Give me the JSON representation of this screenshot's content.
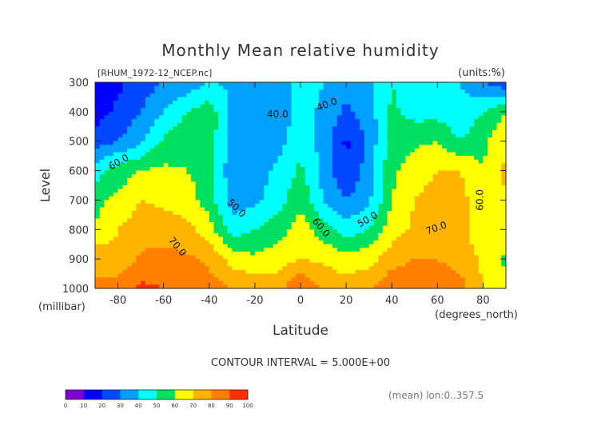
{
  "chart_data": {
    "type": "heatmap",
    "title": "Monthly Mean relative humidity",
    "file_label": "[RHUM_1972-12_NCEP.nc]",
    "units_label": "(units:%)",
    "ylabel": "Level",
    "ylabel_unit": "(millibar)",
    "xlabel": "Latitude",
    "xlabel_unit": "(degrees_north)",
    "x_ticks": [
      -80,
      -60,
      -40,
      -20,
      0,
      20,
      40,
      60,
      80
    ],
    "y_ticks": [
      300,
      400,
      500,
      600,
      700,
      800,
      900,
      1000
    ],
    "xlim": [
      -90,
      90
    ],
    "ylim": [
      1000,
      300
    ],
    "contour_interval_text": "CONTOUR INTERVAL = 5.000E+00",
    "footer_text": "(mean) lon:0..357.5",
    "contour_labels": [
      "40.0",
      "40.0",
      "60.0",
      "50.0",
      "60.0",
      "50.0",
      "70.0",
      "70.0",
      "60.0"
    ],
    "colorbar_ticks": [
      "0",
      "10",
      "20",
      "30",
      "40",
      "50",
      "60",
      "70",
      "80",
      "90",
      "100"
    ],
    "colorbar_colors": [
      "#7f00cf",
      "#0000ff",
      "#0048ff",
      "#00a0ff",
      "#00ffff",
      "#00e060",
      "#ffff00",
      "#ffb400",
      "#ff8000",
      "#ff3000"
    ],
    "latitudes": [
      -90,
      -80,
      -70,
      -60,
      -50,
      -40,
      -30,
      -20,
      -10,
      0,
      10,
      20,
      30,
      40,
      50,
      60,
      70,
      80,
      90
    ],
    "levels": [
      300,
      400,
      500,
      600,
      700,
      800,
      900,
      1000
    ],
    "values": [
      [
        10,
        18,
        25,
        30,
        33,
        40,
        38,
        30,
        33,
        44,
        40,
        33,
        38,
        50,
        45,
        44,
        40,
        30,
        22
      ],
      [
        15,
        22,
        30,
        40,
        50,
        56,
        38,
        30,
        33,
        44,
        38,
        28,
        35,
        52,
        46,
        46,
        42,
        50,
        60
      ],
      [
        25,
        30,
        38,
        52,
        58,
        56,
        35,
        32,
        35,
        48,
        36,
        18,
        33,
        55,
        58,
        60,
        50,
        58,
        68
      ],
      [
        45,
        55,
        60,
        62,
        60,
        55,
        33,
        35,
        42,
        52,
        36,
        20,
        35,
        58,
        65,
        70,
        70,
        60,
        72
      ],
      [
        58,
        62,
        70,
        68,
        65,
        55,
        35,
        38,
        45,
        58,
        40,
        30,
        38,
        60,
        70,
        74,
        74,
        62,
        70
      ],
      [
        60,
        70,
        75,
        75,
        73,
        65,
        45,
        50,
        55,
        65,
        55,
        45,
        50,
        65,
        72,
        76,
        76,
        60,
        65
      ],
      [
        80,
        72,
        82,
        84,
        82,
        78,
        66,
        62,
        65,
        70,
        68,
        64,
        66,
        76,
        80,
        80,
        76,
        68,
        58
      ],
      [
        80,
        85,
        92,
        90,
        88,
        84,
        80,
        76,
        76,
        90,
        78,
        75,
        78,
        88,
        86,
        86,
        84,
        70,
        62
      ]
    ]
  }
}
